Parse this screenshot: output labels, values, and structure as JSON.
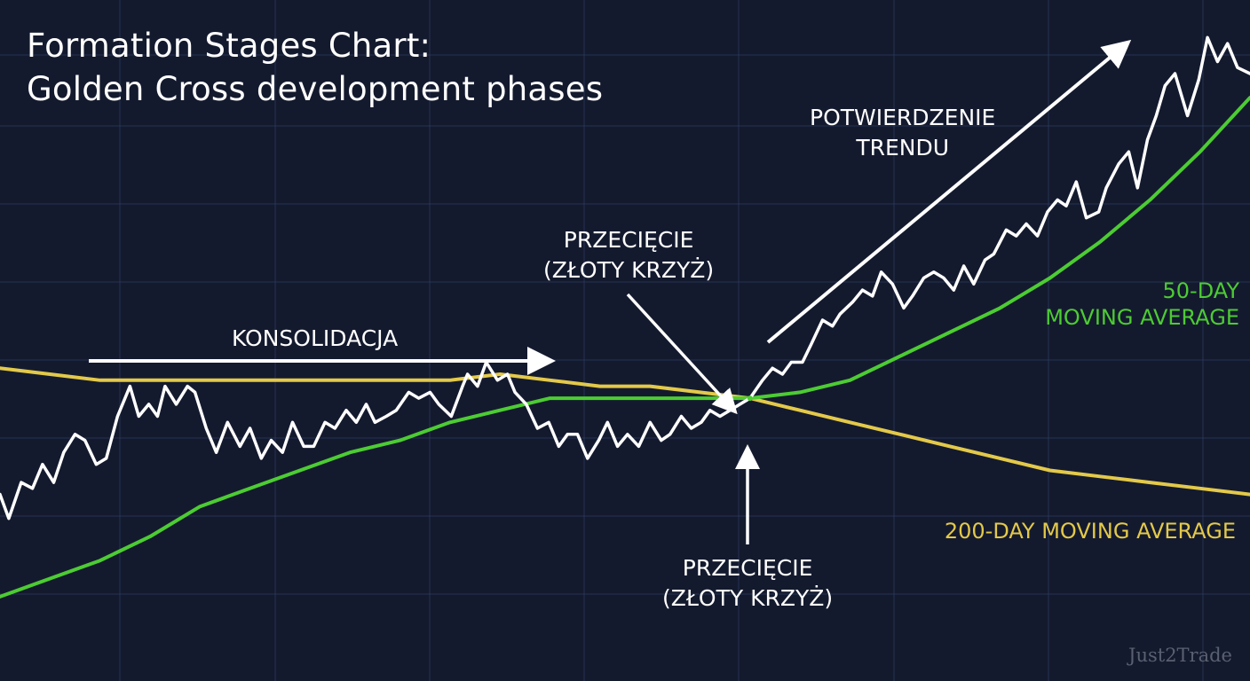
{
  "title": {
    "line1": "Formation Stages Chart:",
    "line2": "Golden Cross development phases"
  },
  "annotations": {
    "consolidation": "KONSOLIDACJA",
    "cross_top_line1": "PRZECIĘCIE",
    "cross_top_line2": "(ZŁOTY KRZYŻ)",
    "trend_line1": "POTWIERDZENIE",
    "trend_line2": "TRENDU",
    "cross_bottom_line1": "PRZECIĘCIE",
    "cross_bottom_line2": "(ZŁOTY KRZYŻ)"
  },
  "legend": {
    "ma50_line1": "50-DAY",
    "ma50_line2": "MOVING AVERAGE",
    "ma200": "200-DAY MOVING AVERAGE"
  },
  "watermark": "Just2Trade",
  "colors": {
    "background": "#141a2e",
    "grid": "#2a3a5c",
    "price": "#ffffff",
    "ma50": "#4ccc33",
    "ma200": "#e3c94a",
    "annotation": "#ffffff"
  },
  "chart_data": {
    "type": "line",
    "title": "Formation Stages Chart: Golden Cross development phases",
    "xlabel": "",
    "ylabel": "",
    "xlim": [
      0,
      100
    ],
    "ylim": [
      0,
      100
    ],
    "grid": true,
    "axes_labels_shown": false,
    "golden_cross": {
      "x": 60,
      "y": 37
    },
    "series": [
      {
        "name": "",
        "role": "price",
        "x": [
          0,
          0.7,
          1.7,
          2.6,
          3.4,
          4.3,
          5.1,
          6.0,
          6.8,
          7.7,
          8.5,
          9.4,
          10.4,
          11.1,
          11.9,
          12.6,
          13.2,
          14.1,
          15.0,
          15.6,
          16.5,
          17.3,
          18.2,
          19.2,
          20.0,
          20.9,
          21.7,
          22.6,
          23.4,
          24.3,
          25.1,
          26.0,
          26.8,
          27.7,
          28.5,
          29.3,
          30.0,
          30.9,
          31.7,
          32.7,
          33.5,
          34.4,
          35.1,
          36.1,
          37.0,
          37.4,
          38.2,
          38.9,
          39.8,
          40.6,
          41.2,
          42.1,
          43.0,
          43.9,
          44.7,
          45.4,
          46.2,
          47.0,
          47.9,
          48.6,
          49.4,
          50.2,
          51.1,
          52.0,
          52.9,
          53.6,
          54.5,
          55.3,
          56.1,
          56.8,
          57.6,
          58.4,
          59.2,
          60.0,
          61.0,
          61.8,
          62.6,
          63.3,
          64.2,
          64.9,
          65.8,
          66.6,
          67.2,
          68.2,
          69.0,
          69.8,
          70.5,
          71.4,
          72.3,
          73.0,
          73.9,
          74.7,
          75.5,
          76.3,
          77.1,
          77.9,
          78.8,
          79.5,
          80.5,
          81.3,
          82.1,
          83.0,
          83.8,
          84.6,
          85.3,
          86.1,
          86.9,
          87.9,
          88.5,
          89.5,
          90.3,
          91.0,
          91.8,
          92.5,
          93.2,
          94.0,
          95.0,
          95.9,
          96.6,
          97.4,
          98.2,
          99.0,
          100.0
        ],
        "y": [
          21,
          17,
          23,
          22,
          26,
          23,
          28,
          31,
          30,
          26,
          27,
          34,
          39,
          34,
          36,
          34,
          39,
          36,
          39,
          38,
          32,
          28,
          33,
          29,
          32,
          27,
          30,
          28,
          33,
          29,
          29,
          33,
          32,
          35,
          33,
          36,
          33,
          34,
          35,
          38,
          37,
          38,
          36,
          34,
          39,
          41,
          39,
          43,
          40,
          41,
          38,
          36,
          32,
          33,
          29,
          31,
          31,
          27,
          30,
          33,
          29,
          31,
          29,
          33,
          30,
          31,
          34,
          32,
          33,
          35,
          34,
          35,
          36,
          37,
          40,
          42,
          41,
          43,
          43,
          46,
          50,
          49,
          51,
          53,
          55,
          54,
          58,
          56,
          52,
          54,
          57,
          58,
          57,
          55,
          59,
          56,
          60,
          61,
          65,
          64,
          66,
          64,
          68,
          70,
          69,
          73,
          67,
          68,
          72,
          76,
          78,
          72,
          80,
          84,
          89,
          91,
          84,
          90,
          97,
          93,
          96,
          92,
          91
        ]
      },
      {
        "name": "50-DAY MOVING AVERAGE",
        "role": "ma50",
        "x": [
          0,
          4,
          8,
          12,
          16,
          20,
          24,
          28,
          32,
          36,
          40,
          44,
          48,
          52,
          56,
          60,
          64,
          68,
          72,
          76,
          80,
          84,
          88,
          92,
          96,
          100
        ],
        "y": [
          4,
          7,
          10,
          14,
          19,
          22,
          25,
          28,
          30,
          33,
          35,
          37,
          37,
          37,
          37,
          37,
          38,
          40,
          44,
          48,
          52,
          57,
          63,
          70,
          78,
          87
        ]
      },
      {
        "name": "200-DAY MOVING AVERAGE",
        "role": "ma200",
        "x": [
          0,
          4,
          8,
          12,
          16,
          20,
          24,
          28,
          32,
          36,
          40,
          44,
          48,
          52,
          56,
          60,
          64,
          68,
          72,
          76,
          80,
          84,
          88,
          92,
          96,
          100
        ],
        "y": [
          42,
          41,
          40,
          40,
          40,
          40,
          40,
          40,
          40,
          40,
          41,
          40,
          39,
          39,
          38,
          37,
          35,
          33,
          31,
          29,
          27,
          25,
          24,
          23,
          22,
          21
        ]
      }
    ],
    "annotations": [
      {
        "text": "KONSOLIDACJA",
        "arrow": "right"
      },
      {
        "text": "PRZECIĘCIE (ZŁOTY KRZYŻ)",
        "arrow": "down-right",
        "target": "golden_cross"
      },
      {
        "text": "PRZECIĘCIE (ZŁOTY KRZYŻ)",
        "arrow": "up",
        "target": "golden_cross"
      },
      {
        "text": "POTWIERDZENIE TRENDU",
        "arrow": "up-right"
      }
    ]
  }
}
